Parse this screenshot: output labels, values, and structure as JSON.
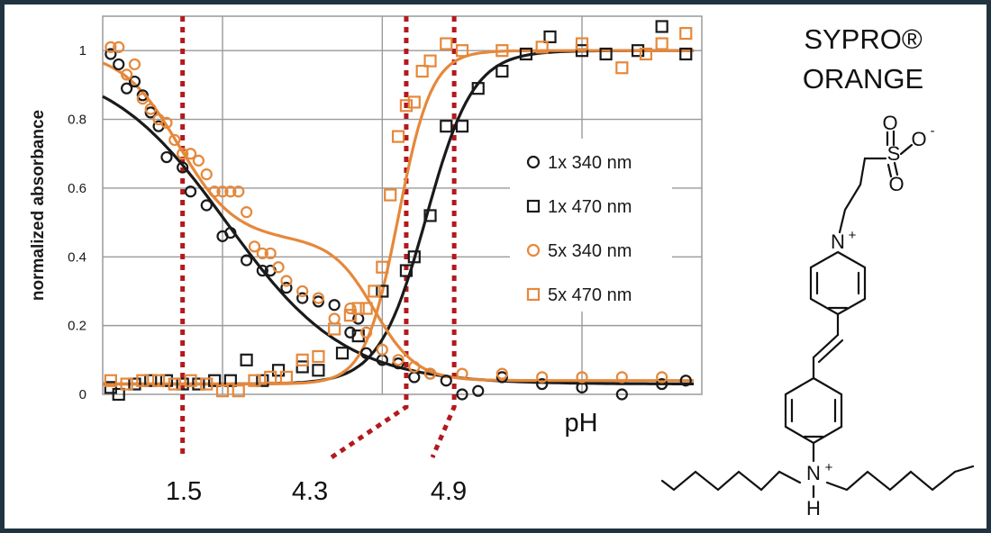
{
  "chart_data": {
    "type": "scatter",
    "title": "",
    "xlabel": "pH",
    "ylabel": "normalized absorbance",
    "xlim": [
      0.5,
      8
    ],
    "ylim": [
      0,
      1.1
    ],
    "yticks": [
      "0",
      "0.2",
      "0.4",
      "0.6",
      "0.8",
      "1"
    ],
    "ytick_values": [
      0,
      0.2,
      0.4,
      0.6,
      0.8,
      1.0
    ],
    "xgrid": [
      0.5,
      2,
      4,
      6.5,
      8
    ],
    "grid": true,
    "legend_position": "center-right",
    "colors": {
      "black": "#1a1a1a",
      "orange": "#e5883b",
      "annotation": "#b3191d"
    },
    "series": [
      {
        "name": "1x 340 nm",
        "marker": "circle",
        "color": "#1a1a1a",
        "x": [
          0.6,
          0.7,
          0.8,
          0.9,
          1.0,
          1.1,
          1.2,
          1.3,
          1.5,
          1.6,
          1.8,
          2.0,
          2.1,
          2.3,
          2.5,
          2.6,
          2.8,
          3.0,
          3.2,
          3.4,
          3.6,
          3.7,
          3.8,
          4.0,
          4.2,
          4.4,
          4.6,
          4.8,
          5.0,
          5.2,
          5.5,
          6.0,
          6.5,
          7.0,
          7.5,
          7.8
        ],
        "y": [
          0.99,
          0.96,
          0.89,
          0.91,
          0.87,
          0.82,
          0.78,
          0.69,
          0.66,
          0.59,
          0.55,
          0.46,
          0.47,
          0.39,
          0.36,
          0.36,
          0.31,
          0.28,
          0.27,
          0.26,
          0.18,
          0.22,
          0.12,
          0.1,
          0.09,
          0.05,
          0.06,
          0.04,
          0.0,
          0.01,
          0.05,
          0.03,
          0.02,
          0.0,
          0.03,
          0.04
        ]
      },
      {
        "name": "1x 470 nm",
        "marker": "square",
        "color": "#1a1a1a",
        "x": [
          0.6,
          0.7,
          0.9,
          1.1,
          1.3,
          1.5,
          1.7,
          1.9,
          2.1,
          2.3,
          2.5,
          2.7,
          3.0,
          3.2,
          3.5,
          3.7,
          4.0,
          4.3,
          4.4,
          4.6,
          4.8,
          5.0,
          5.2,
          5.5,
          5.8,
          6.1,
          6.5,
          6.8,
          7.2,
          7.5,
          7.8
        ],
        "y": [
          0.02,
          0.0,
          0.03,
          0.04,
          0.04,
          0.03,
          0.03,
          0.04,
          0.04,
          0.1,
          0.04,
          0.07,
          0.08,
          0.07,
          0.12,
          0.17,
          0.3,
          0.36,
          0.4,
          0.52,
          0.78,
          0.78,
          0.89,
          0.94,
          0.99,
          1.04,
          1.0,
          0.99,
          1.0,
          1.07,
          0.99
        ]
      },
      {
        "name": "5x 340 nm",
        "marker": "circle",
        "color": "#e5883b",
        "x": [
          0.6,
          0.7,
          0.8,
          0.9,
          1.0,
          1.1,
          1.2,
          1.3,
          1.4,
          1.5,
          1.6,
          1.7,
          1.8,
          1.9,
          2.0,
          2.1,
          2.2,
          2.3,
          2.4,
          2.5,
          2.6,
          2.7,
          2.8,
          3.0,
          3.2,
          3.4,
          3.6,
          3.8,
          4.0,
          4.2,
          4.4,
          4.6,
          5.0,
          5.5,
          6.0,
          6.5,
          7.0,
          7.5
        ],
        "y": [
          1.01,
          1.01,
          0.93,
          0.96,
          0.86,
          0.83,
          0.8,
          0.79,
          0.74,
          0.7,
          0.7,
          0.68,
          0.64,
          0.59,
          0.59,
          0.59,
          0.59,
          0.53,
          0.43,
          0.41,
          0.41,
          0.37,
          0.33,
          0.3,
          0.28,
          0.22,
          0.25,
          0.18,
          0.13,
          0.1,
          0.08,
          0.06,
          0.06,
          0.06,
          0.05,
          0.05,
          0.05,
          0.05
        ]
      },
      {
        "name": "5x 470 nm",
        "marker": "square",
        "color": "#e5883b",
        "x": [
          0.6,
          0.8,
          1.0,
          1.2,
          1.4,
          1.6,
          1.8,
          2.0,
          2.2,
          2.4,
          2.6,
          2.8,
          3.0,
          3.2,
          3.4,
          3.6,
          3.7,
          3.8,
          3.9,
          4.0,
          4.1,
          4.2,
          4.3,
          4.4,
          4.5,
          4.6,
          4.8,
          5.0,
          5.5,
          6.0,
          6.5,
          7.0,
          7.3,
          7.5,
          7.8
        ],
        "y": [
          0.04,
          0.03,
          0.04,
          0.04,
          0.03,
          0.04,
          0.03,
          0.01,
          0.01,
          0.04,
          0.05,
          0.05,
          0.1,
          0.11,
          0.19,
          0.23,
          0.25,
          0.25,
          0.3,
          0.37,
          0.58,
          0.75,
          0.84,
          0.85,
          0.94,
          0.97,
          1.02,
          1.0,
          1.0,
          1.01,
          1.02,
          0.95,
          0.99,
          1.02,
          1.05
        ]
      }
    ],
    "fit_curves": [
      {
        "series": "1x 340 nm",
        "color": "#1a1a1a"
      },
      {
        "series": "1x 470 nm",
        "color": "#1a1a1a"
      },
      {
        "series": "5x 340 nm",
        "color": "#e5883b"
      },
      {
        "series": "5x 470 nm",
        "color": "#e5883b"
      }
    ],
    "annotations": [
      {
        "label": "1.5",
        "x": 1.5
      },
      {
        "label": "4.3",
        "x": 4.3
      },
      {
        "label": "4.9",
        "x": 4.9
      }
    ]
  },
  "structure": {
    "title_line1": "SYPRO®",
    "title_line2": "ORANGE",
    "atoms": {
      "sulfur": "S",
      "oxygen_top": "O",
      "oxygen_right": "O",
      "oxygen_bottom": "O",
      "oxygen_charge": "-",
      "pyridinium_n": "N",
      "pyridinium_charge": "+",
      "amine_n": "N",
      "amine_charge": "+",
      "amine_h": "H"
    }
  }
}
